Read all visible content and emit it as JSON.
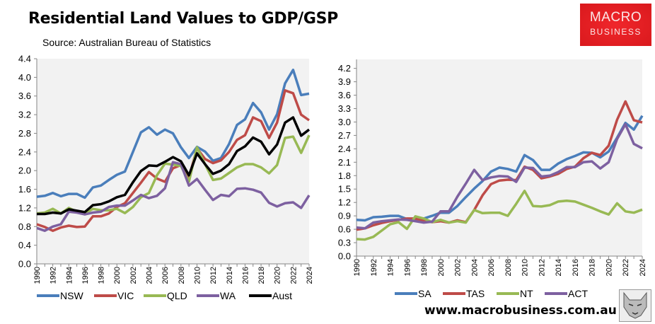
{
  "header": {
    "title": "Residential Land Values to GDP/GSP",
    "subtitle": "Source: Australian Bureau of Statistics",
    "logo_line1": "MACRO",
    "logo_line2": "BUSINESS"
  },
  "footer": {
    "url": "www.macrobusiness.com.au",
    "mascot_icon": "wolf-icon"
  },
  "chart_data": [
    {
      "type": "line",
      "title": "",
      "xlabel": "",
      "ylabel": "",
      "x": [
        1990,
        1991,
        1992,
        1993,
        1994,
        1995,
        1996,
        1997,
        1998,
        1999,
        2000,
        2001,
        2002,
        2003,
        2004,
        2005,
        2006,
        2007,
        2008,
        2009,
        2010,
        2011,
        2012,
        2013,
        2014,
        2015,
        2016,
        2017,
        2018,
        2019,
        2020,
        2021,
        2022,
        2023,
        2024
      ],
      "x_tick_labels": [
        "1990",
        "1992",
        "1994",
        "1996",
        "1998",
        "2000",
        "2002",
        "2004",
        "2006",
        "2008",
        "2010",
        "2012",
        "2014",
        "2016",
        "2018",
        "2020",
        "2022",
        "2024"
      ],
      "ylim": [
        0,
        4.4
      ],
      "y_tick_labels": [
        "0.0",
        "0.4",
        "0.8",
        "1.2",
        "1.6",
        "2.0",
        "2.4",
        "2.8",
        "3.2",
        "3.6",
        "4.0",
        "4.4"
      ],
      "grid": false,
      "legend": "bottom",
      "series": [
        {
          "name": "NSW",
          "color": "#4a7ebb",
          "values": [
            1.44,
            1.46,
            1.52,
            1.45,
            1.5,
            1.5,
            1.42,
            1.64,
            1.68,
            1.8,
            1.91,
            1.98,
            2.4,
            2.82,
            2.93,
            2.77,
            2.88,
            2.8,
            2.5,
            2.27,
            2.51,
            2.41,
            2.21,
            2.27,
            2.57,
            2.98,
            3.1,
            3.45,
            3.25,
            2.88,
            3.21,
            3.87,
            4.16,
            3.62,
            3.65
          ]
        },
        {
          "name": "VIC",
          "color": "#be4b48",
          "values": [
            0.85,
            0.79,
            0.71,
            0.78,
            0.82,
            0.79,
            0.8,
            1.02,
            1.02,
            1.08,
            1.22,
            1.3,
            1.52,
            1.74,
            1.97,
            1.83,
            1.76,
            2.05,
            2.12,
            1.85,
            2.48,
            2.25,
            2.16,
            2.22,
            2.4,
            2.66,
            2.76,
            3.14,
            3.06,
            2.7,
            3.03,
            3.72,
            3.66,
            3.2,
            3.08
          ]
        },
        {
          "name": "QLD",
          "color": "#98b954",
          "values": [
            1.08,
            1.1,
            1.18,
            1.08,
            1.2,
            1.12,
            1.08,
            1.18,
            1.15,
            1.15,
            1.18,
            1.09,
            1.22,
            1.43,
            1.52,
            1.9,
            2.15,
            2.13,
            2.1,
            1.76,
            2.5,
            2.14,
            1.8,
            1.83,
            1.95,
            2.07,
            2.14,
            2.14,
            2.07,
            1.94,
            2.12,
            2.7,
            2.73,
            2.38,
            2.76
          ]
        },
        {
          "name": "WA",
          "color": "#7d60a0",
          "values": [
            0.77,
            0.71,
            0.8,
            0.85,
            1.12,
            1.1,
            1.06,
            1.1,
            1.12,
            1.22,
            1.25,
            1.25,
            1.36,
            1.48,
            1.41,
            1.46,
            1.62,
            2.18,
            2.14,
            1.68,
            1.82,
            1.59,
            1.37,
            1.48,
            1.45,
            1.61,
            1.62,
            1.59,
            1.53,
            1.31,
            1.23,
            1.3,
            1.32,
            1.2,
            1.47
          ]
        },
        {
          "name": "Aust",
          "color": "#000000",
          "values": [
            1.07,
            1.07,
            1.1,
            1.08,
            1.17,
            1.14,
            1.11,
            1.26,
            1.28,
            1.34,
            1.43,
            1.48,
            1.75,
            1.99,
            2.11,
            2.1,
            2.19,
            2.29,
            2.2,
            1.9,
            2.37,
            2.14,
            1.93,
            2.0,
            2.14,
            2.42,
            2.52,
            2.71,
            2.62,
            2.35,
            2.56,
            3.03,
            3.14,
            2.75,
            2.88
          ]
        }
      ]
    },
    {
      "type": "line",
      "title": "",
      "xlabel": "",
      "ylabel": "",
      "x": [
        1990,
        1991,
        1992,
        1993,
        1994,
        1995,
        1996,
        1997,
        1998,
        1999,
        2000,
        2001,
        2002,
        2003,
        2004,
        2005,
        2006,
        2007,
        2008,
        2009,
        2010,
        2011,
        2012,
        2013,
        2014,
        2015,
        2016,
        2017,
        2018,
        2019,
        2020,
        2021,
        2022,
        2023,
        2024
      ],
      "x_tick_labels": [
        "1990",
        "1992",
        "1994",
        "1996",
        "1998",
        "2000",
        "2002",
        "2004",
        "2006",
        "2008",
        "2010",
        "2012",
        "2014",
        "2016",
        "2018",
        "2020",
        "2022",
        "2024"
      ],
      "ylim": [
        0,
        4.4
      ],
      "y_tick_labels": [
        "0.0",
        "0.3",
        "0.6",
        "0.9",
        "1.2",
        "1.5",
        "1.8",
        "2.1",
        "2.4",
        "2.7",
        "3.0",
        "3.3",
        "3.6",
        "3.9",
        "4.2"
      ],
      "grid": false,
      "legend": "bottom",
      "series": [
        {
          "name": "SA",
          "color": "#4a7ebb",
          "values": [
            0.81,
            0.8,
            0.87,
            0.88,
            0.9,
            0.9,
            0.83,
            0.82,
            0.84,
            0.9,
            0.97,
            0.97,
            1.12,
            1.32,
            1.51,
            1.68,
            1.89,
            1.98,
            1.95,
            1.89,
            2.26,
            2.15,
            1.93,
            1.93,
            2.07,
            2.17,
            2.24,
            2.32,
            2.31,
            2.21,
            2.34,
            2.65,
            2.98,
            2.83,
            3.14
          ]
        },
        {
          "name": "TAS",
          "color": "#be4b48",
          "values": [
            0.59,
            0.62,
            0.69,
            0.74,
            0.78,
            0.81,
            0.84,
            0.84,
            0.79,
            0.76,
            0.78,
            0.75,
            0.8,
            0.76,
            1.03,
            1.36,
            1.61,
            1.69,
            1.71,
            1.7,
            2.0,
            1.93,
            1.74,
            1.78,
            1.84,
            1.95,
            2.0,
            2.19,
            2.31,
            2.26,
            2.47,
            3.05,
            3.46,
            3.04,
            2.99
          ]
        },
        {
          "name": "NT",
          "color": "#98b954",
          "values": [
            0.38,
            0.37,
            0.43,
            0.57,
            0.71,
            0.76,
            0.61,
            0.89,
            0.84,
            0.76,
            0.81,
            0.75,
            0.78,
            0.75,
            1.03,
            0.96,
            0.97,
            0.97,
            0.9,
            1.17,
            1.46,
            1.12,
            1.11,
            1.14,
            1.22,
            1.24,
            1.22,
            1.15,
            1.08,
            1.0,
            0.93,
            1.18,
            1.0,
            0.97,
            1.04
          ]
        },
        {
          "name": "ACT",
          "color": "#7d60a0",
          "values": [
            0.64,
            0.62,
            0.75,
            0.78,
            0.8,
            0.82,
            0.81,
            0.78,
            0.75,
            0.77,
            1.0,
            1.0,
            1.33,
            1.62,
            1.93,
            1.7,
            1.76,
            1.79,
            1.78,
            1.66,
            1.98,
            1.97,
            1.78,
            1.8,
            1.88,
            1.99,
            1.99,
            2.1,
            2.12,
            1.96,
            2.1,
            2.62,
            2.95,
            2.51,
            2.41
          ]
        }
      ]
    }
  ]
}
